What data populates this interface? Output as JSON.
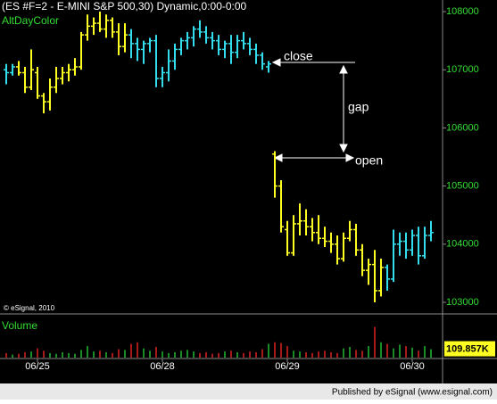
{
  "chart_data": [
    {
      "type": "ohlc",
      "title": "(ES #F=2 - E-MINI S&P 500,30) Dynamic,0:00-0:00",
      "indicator": "AltDayColor",
      "watermark": "© eSignal, 2010",
      "publisher": "Published by eSignal (www.esignal.com)",
      "annotations": [
        "close",
        "gap",
        "open"
      ],
      "categories": [
        null,
        null,
        null,
        null,
        null,
        "06/25",
        null,
        null,
        null,
        null,
        null,
        null,
        null,
        null,
        null,
        null,
        null,
        null,
        null,
        null,
        null,
        null,
        null,
        null,
        null,
        "06/28",
        null,
        null,
        null,
        null,
        null,
        null,
        null,
        null,
        null,
        null,
        null,
        null,
        null,
        null,
        null,
        null,
        null,
        null,
        null,
        "06/29",
        null,
        null,
        null,
        null,
        null,
        null,
        null,
        null,
        null,
        null,
        null,
        null,
        null,
        null,
        null,
        null,
        null,
        null,
        null,
        "06/30",
        null,
        null,
        null
      ],
      "open": [
        107000,
        106950,
        107050,
        106950,
        106700,
        106950,
        106550,
        106450,
        106700,
        106850,
        106950,
        107000,
        107050,
        107600,
        107750,
        107800,
        107700,
        107850,
        107650,
        107400,
        107600,
        107450,
        107350,
        107450,
        107500,
        106850,
        106950,
        107150,
        107350,
        107500,
        107550,
        107700,
        107650,
        107550,
        107500,
        107350,
        107450,
        107300,
        107500,
        107450,
        107350,
        107250,
        107050,
        105550,
        105000,
        104250,
        103850,
        104350,
        104400,
        104300,
        104200,
        104100,
        104050,
        104000,
        103750,
        104100,
        104250,
        103900,
        103550,
        103650,
        103200,
        103600,
        103400,
        104000,
        104050,
        103900,
        104150,
        103800,
        104150
      ],
      "high": [
        107100,
        107100,
        107150,
        107050,
        107350,
        107050,
        106600,
        106850,
        107050,
        107050,
        107100,
        107200,
        107650,
        107950,
        107900,
        108000,
        107950,
        107900,
        107800,
        107800,
        107700,
        107550,
        107500,
        107550,
        107600,
        107050,
        107350,
        107450,
        107550,
        107650,
        107750,
        107850,
        107750,
        107650,
        107600,
        107500,
        107600,
        107600,
        107650,
        107550,
        107450,
        107300,
        107150,
        105600,
        105100,
        104400,
        104500,
        104700,
        104600,
        104450,
        104500,
        104300,
        104200,
        104150,
        104200,
        104400,
        104350,
        104000,
        103750,
        103900,
        103750,
        103650,
        104250,
        104200,
        104200,
        104250,
        104300,
        104300,
        104400
      ],
      "low": [
        106750,
        106900,
        106900,
        106600,
        106650,
        106500,
        106250,
        106300,
        106600,
        106750,
        106800,
        106900,
        107000,
        107500,
        107600,
        107650,
        107550,
        107550,
        107250,
        107300,
        107200,
        107150,
        107100,
        107300,
        106700,
        106700,
        106800,
        107000,
        107250,
        107350,
        107400,
        107550,
        107450,
        107350,
        107250,
        107200,
        107100,
        107200,
        107350,
        107250,
        107100,
        107000,
        106950,
        104800,
        104200,
        103800,
        103800,
        104150,
        104150,
        104050,
        104000,
        103950,
        103850,
        103650,
        103700,
        104050,
        103800,
        103450,
        103300,
        103000,
        103100,
        103200,
        103350,
        103800,
        103750,
        103800,
        103650,
        103750,
        104050
      ],
      "close": [
        106950,
        107050,
        106950,
        106700,
        107000,
        106550,
        106450,
        106700,
        106850,
        106950,
        107000,
        107050,
        107600,
        107750,
        107800,
        107700,
        107850,
        107650,
        107400,
        107600,
        107450,
        107350,
        107450,
        107500,
        106850,
        106950,
        107150,
        107350,
        107500,
        107550,
        107700,
        107650,
        107550,
        107500,
        107350,
        107450,
        107300,
        107500,
        107450,
        107350,
        107250,
        107100,
        107100,
        105000,
        104300,
        103850,
        104350,
        104400,
        104300,
        104200,
        104100,
        104050,
        104000,
        103750,
        104100,
        104250,
        103900,
        103550,
        103650,
        103200,
        103600,
        103400,
        104000,
        104050,
        103900,
        104150,
        103800,
        104150,
        104200
      ],
      "colors": [
        "#33ddee",
        "#33ddee",
        "#ffff22",
        "#ffff22",
        "#ffff22",
        "#ffff22",
        "#ffff22",
        "#ffff22",
        "#ffff22",
        "#ffff22",
        "#ffff22",
        "#ffff22",
        "#ffff22",
        "#ffff22",
        "#ffff22",
        "#ffff22",
        "#ffff22",
        "#ffff22",
        "#ffff22",
        "#ffff22",
        "#33ddee",
        "#33ddee",
        "#33ddee",
        "#33ddee",
        "#33ddee",
        "#33ddee",
        "#33ddee",
        "#33ddee",
        "#33ddee",
        "#33ddee",
        "#33ddee",
        "#33ddee",
        "#33ddee",
        "#33ddee",
        "#33ddee",
        "#33ddee",
        "#33ddee",
        "#33ddee",
        "#33ddee",
        "#33ddee",
        "#33ddee",
        "#33ddee",
        "#33ddee",
        "#ffff22",
        "#ffff22",
        "#ffff22",
        "#ffff22",
        "#ffff22",
        "#ffff22",
        "#ffff22",
        "#ffff22",
        "#ffff22",
        "#ffff22",
        "#ffff22",
        "#ffff22",
        "#ffff22",
        "#ffff22",
        "#ffff22",
        "#ffff22",
        "#ffff22",
        "#ffff22",
        "#33ddee",
        "#33ddee",
        "#33ddee",
        "#33ddee",
        "#33ddee",
        "#33ddee",
        "#33ddee",
        "#33ddee"
      ],
      "ylim": [
        102800,
        108200
      ],
      "yticks": [
        103000,
        104000,
        105000,
        106000,
        107000,
        108000
      ],
      "tick_color": "#33dd33"
    },
    {
      "type": "bar",
      "title": "Volume",
      "values": [
        60,
        40,
        50,
        70,
        80,
        120,
        90,
        60,
        50,
        70,
        60,
        50,
        100,
        150,
        80,
        90,
        70,
        60,
        110,
        100,
        180,
        200,
        120,
        90,
        140,
        80,
        60,
        70,
        90,
        100,
        80,
        60,
        70,
        50,
        60,
        80,
        90,
        70,
        60,
        80,
        70,
        110,
        180,
        200,
        190,
        150,
        90,
        80,
        70,
        60,
        80,
        90,
        70,
        60,
        120,
        140,
        100,
        90,
        150,
        400,
        200,
        180,
        120,
        170,
        150,
        130,
        90,
        150,
        109.857
      ],
      "value_labels": [
        null,
        null,
        null,
        null,
        null,
        null,
        null,
        null,
        null,
        null,
        null,
        null,
        null,
        null,
        null,
        null,
        null,
        null,
        null,
        null,
        null,
        null,
        null,
        null,
        null,
        null,
        null,
        null,
        null,
        null,
        null,
        null,
        null,
        null,
        null,
        null,
        null,
        null,
        null,
        null,
        null,
        null,
        null,
        null,
        null,
        null,
        null,
        null,
        null,
        null,
        null,
        null,
        null,
        null,
        null,
        null,
        null,
        null,
        null,
        null,
        null,
        null,
        null,
        null,
        null,
        null,
        null,
        null,
        "109.857K"
      ],
      "ylim": [
        0,
        500
      ],
      "up_color": "#22bb33",
      "down_color": "#dd2222"
    }
  ]
}
